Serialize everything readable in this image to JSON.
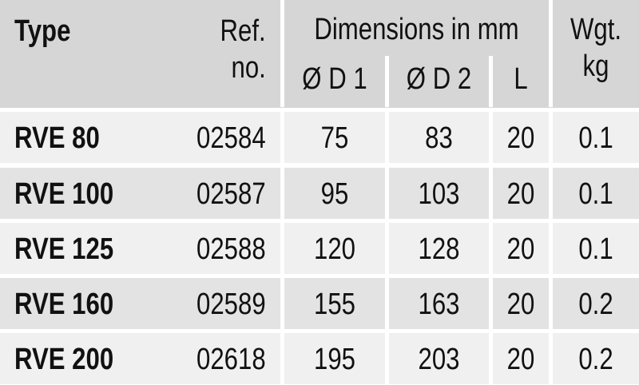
{
  "header": {
    "type": "Type",
    "ref_line1": "Ref.",
    "ref_line2": "no.",
    "dimensions": "Dimensions in mm",
    "d1": "Ø D 1",
    "d2": "Ø D 2",
    "l": "L",
    "wgt_line1": "Wgt.",
    "wgt_line2": "kg"
  },
  "colors": {
    "header_bg": "#d6d6d6",
    "row_light": "#f0f0f0",
    "row_dark": "#e3e3e3"
  },
  "rows": [
    {
      "type": "RVE 80",
      "ref": "02584",
      "d1": "75",
      "d2": "83",
      "l": "20",
      "wgt": "0.1"
    },
    {
      "type": "RVE 100",
      "ref": "02587",
      "d1": "95",
      "d2": "103",
      "l": "20",
      "wgt": "0.1"
    },
    {
      "type": "RVE 125",
      "ref": "02588",
      "d1": "120",
      "d2": "128",
      "l": "20",
      "wgt": "0.1"
    },
    {
      "type": "RVE 160",
      "ref": "02589",
      "d1": "155",
      "d2": "163",
      "l": "20",
      "wgt": "0.2"
    },
    {
      "type": "RVE 200",
      "ref": "02618",
      "d1": "195",
      "d2": "203",
      "l": "20",
      "wgt": "0.2"
    }
  ]
}
